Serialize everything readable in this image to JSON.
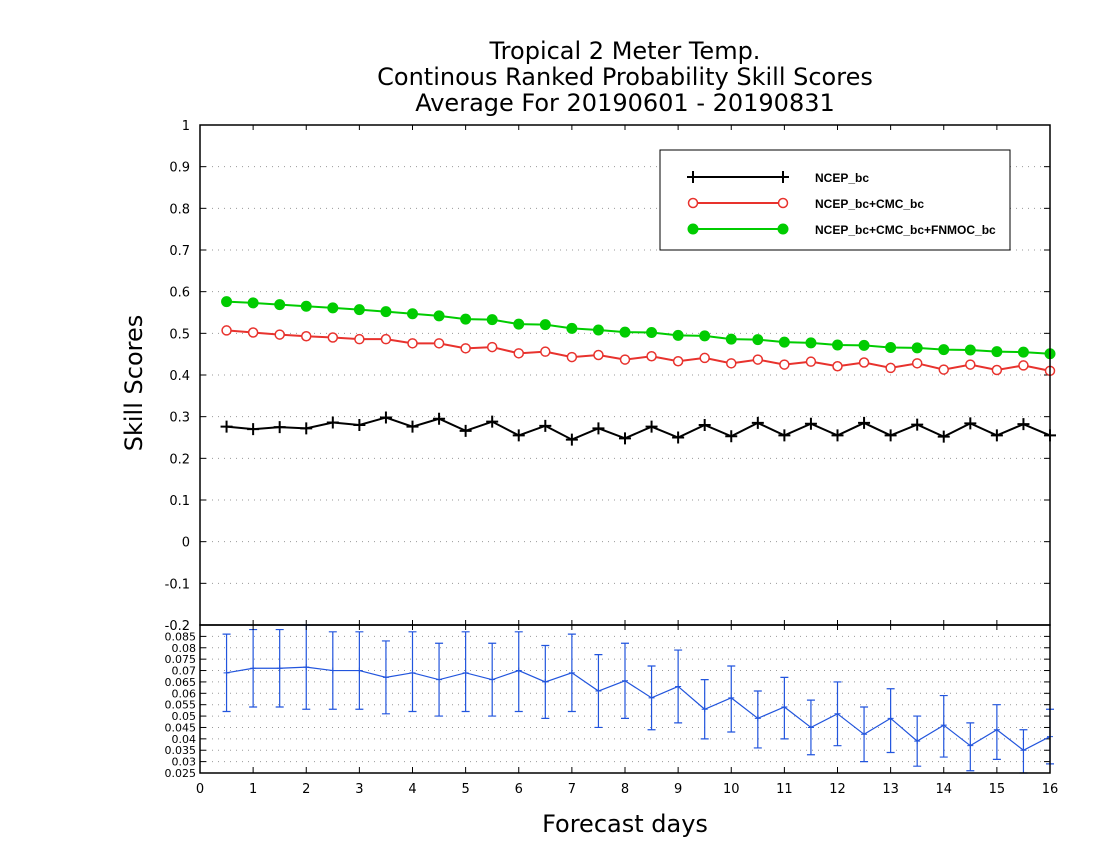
{
  "chart_data": [
    {
      "type": "line",
      "title": [
        "Tropical 2 Meter Temp.",
        "Continous Ranked Probability Skill Scores",
        "Average For 20190601 - 20190831"
      ],
      "xlabel": "Forecast days",
      "ylabel": "Skill Scores",
      "xlim": [
        0,
        16
      ],
      "ylim": [
        -0.2,
        1
      ],
      "xticks": [
        "0",
        "1",
        "2",
        "3",
        "4",
        "5",
        "6",
        "7",
        "8",
        "9",
        "10",
        "11",
        "12",
        "13",
        "14",
        "15",
        "16"
      ],
      "yticks": [
        "-0.2",
        "-0.1",
        "0",
        "0.1",
        "0.2",
        "0.3",
        "0.4",
        "0.5",
        "0.6",
        "0.7",
        "0.8",
        "0.9",
        "1"
      ],
      "grid": true,
      "legend_position": "top-right",
      "x": [
        0.5,
        1,
        1.5,
        2,
        2.5,
        3,
        3.5,
        4,
        4.5,
        5,
        5.5,
        6,
        6.5,
        7,
        7.5,
        8,
        8.5,
        9,
        9.5,
        10,
        10.5,
        11,
        11.5,
        12,
        12.5,
        13,
        13.5,
        14,
        14.5,
        15,
        15.5,
        16
      ],
      "series": [
        {
          "name": "NCEP_bc",
          "color": "#000000",
          "marker": "plus",
          "values": [
            0.276,
            0.27,
            0.275,
            0.272,
            0.286,
            0.28,
            0.298,
            0.276,
            0.295,
            0.266,
            0.288,
            0.255,
            0.278,
            0.245,
            0.272,
            0.248,
            0.276,
            0.25,
            0.28,
            0.253,
            0.285,
            0.255,
            0.283,
            0.255,
            0.285,
            0.255,
            0.281,
            0.252,
            0.284,
            0.255,
            0.282,
            0.255
          ]
        },
        {
          "name": "NCEP_bc+CMC_bc",
          "color": "#e8322d",
          "marker": "open-circle",
          "values": [
            0.507,
            0.502,
            0.497,
            0.493,
            0.49,
            0.486,
            0.486,
            0.476,
            0.476,
            0.464,
            0.467,
            0.452,
            0.456,
            0.443,
            0.448,
            0.437,
            0.445,
            0.433,
            0.441,
            0.428,
            0.437,
            0.425,
            0.432,
            0.421,
            0.43,
            0.417,
            0.428,
            0.413,
            0.425,
            0.412,
            0.423,
            0.41
          ]
        },
        {
          "name": "NCEP_bc+CMC_bc+FNMOC_bc",
          "color": "#00cc00",
          "marker": "filled-circle",
          "values": [
            0.576,
            0.573,
            0.569,
            0.565,
            0.561,
            0.557,
            0.552,
            0.547,
            0.542,
            0.534,
            0.533,
            0.522,
            0.521,
            0.512,
            0.508,
            0.503,
            0.502,
            0.495,
            0.494,
            0.486,
            0.485,
            0.479,
            0.477,
            0.472,
            0.471,
            0.466,
            0.465,
            0.461,
            0.46,
            0.456,
            0.455,
            0.451
          ]
        }
      ]
    },
    {
      "type": "line",
      "xlim": [
        0,
        16
      ],
      "ylim": [
        0.025,
        0.09
      ],
      "yticks": [
        "0.025",
        "0.03",
        "0.035",
        "0.04",
        "0.045",
        "0.05",
        "0.055",
        "0.06",
        "0.065",
        "0.07",
        "0.075",
        "0.08",
        "0.085"
      ],
      "grid": true,
      "x": [
        0.5,
        1,
        1.5,
        2,
        2.5,
        3,
        3.5,
        4,
        4.5,
        5,
        5.5,
        6,
        6.5,
        7,
        7.5,
        8,
        8.5,
        9,
        9.5,
        10,
        10.5,
        11,
        11.5,
        12,
        12.5,
        13,
        13.5,
        14,
        14.5,
        15,
        15.5,
        16
      ],
      "series": [
        {
          "color": "#2255dd",
          "values": [
            0.069,
            0.071,
            0.071,
            0.0715,
            0.07,
            0.07,
            0.067,
            0.069,
            0.066,
            0.069,
            0.066,
            0.07,
            0.065,
            0.069,
            0.061,
            0.0655,
            0.058,
            0.063,
            0.053,
            0.058,
            0.049,
            0.054,
            0.045,
            0.051,
            0.042,
            0.049,
            0.039,
            0.046,
            0.037,
            0.044,
            0.035,
            0.041
          ],
          "error_low": [
            0.052,
            0.054,
            0.054,
            0.053,
            0.053,
            0.053,
            0.051,
            0.052,
            0.05,
            0.052,
            0.05,
            0.052,
            0.049,
            0.052,
            0.045,
            0.049,
            0.044,
            0.047,
            0.04,
            0.043,
            0.036,
            0.04,
            0.033,
            0.037,
            0.03,
            0.034,
            0.028,
            0.032,
            0.026,
            0.031,
            0.025,
            0.029
          ],
          "error_high": [
            0.086,
            0.088,
            0.088,
            0.09,
            0.087,
            0.087,
            0.083,
            0.087,
            0.082,
            0.087,
            0.082,
            0.087,
            0.081,
            0.086,
            0.077,
            0.082,
            0.072,
            0.079,
            0.066,
            0.072,
            0.061,
            0.067,
            0.057,
            0.065,
            0.054,
            0.062,
            0.05,
            0.059,
            0.047,
            0.055,
            0.044,
            0.053
          ]
        }
      ]
    }
  ]
}
